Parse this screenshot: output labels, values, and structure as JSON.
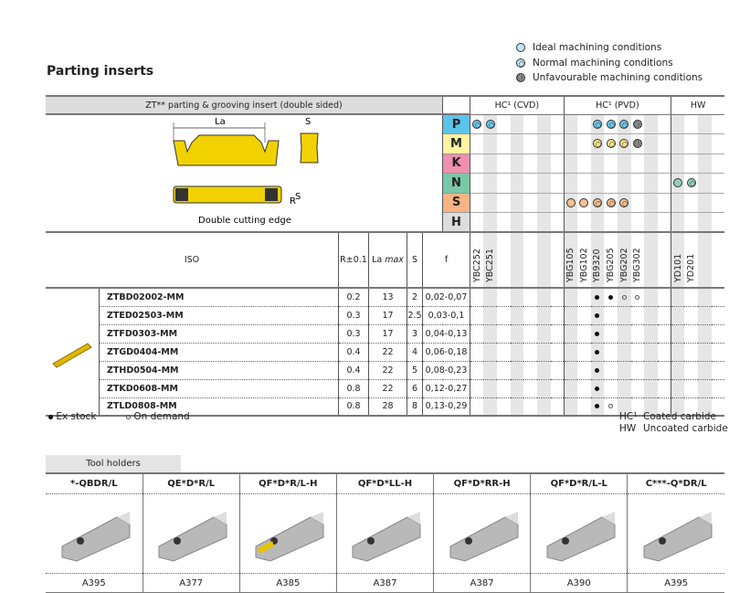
{
  "title": "Parting inserts",
  "legend": [
    {
      "type": "ideal",
      "label": "Ideal machining conditions"
    },
    {
      "type": "normal",
      "label": "Normal machining conditions"
    },
    {
      "type": "unfav",
      "label": "Unfavourable machining conditions"
    }
  ],
  "insert_header": "ZT** parting & grooving insert (double sided)",
  "drawing": {
    "la": "La",
    "s": "S",
    "r": "R",
    "s2": "S",
    "caption": "Double cutting edge"
  },
  "sections": [
    {
      "label": "HC¹ (CVD)",
      "cols": 7
    },
    {
      "label": "HC¹ (PVD)",
      "cols": 8
    },
    {
      "label": "HW",
      "cols": 4
    }
  ],
  "grades": [
    "YBC252",
    "YBC251",
    "",
    "",
    "",
    "",
    "",
    "YBG105",
    "YBG102",
    "YB9320",
    "YBG205",
    "YBG202",
    "YBG302",
    "",
    "",
    "YD101",
    "YD201",
    "",
    ""
  ],
  "materials": [
    {
      "letter": "P",
      "color": "#5cc3ea",
      "cells": {
        "0": "normal",
        "1": "normal",
        "9": "normal",
        "10": "normal",
        "11": "normal",
        "12": "unfav"
      },
      "sym_color": "#6cc8ee"
    },
    {
      "letter": "M",
      "color": "#fdf3a0",
      "cells": {
        "9": "normal",
        "10": "normal",
        "11": "normal",
        "12": "unfav"
      },
      "sym_color": "#f7e88a"
    },
    {
      "letter": "K",
      "color": "#f08fb0",
      "cells": {},
      "sym_color": "#f08fb0"
    },
    {
      "letter": "N",
      "color": "#79c9a8",
      "cells": {
        "15": "ideal",
        "16": "normal"
      },
      "sym_color": "#8fd3b4"
    },
    {
      "letter": "S",
      "color": "#f7b484",
      "cells": {
        "7": "ideal",
        "8": "ideal",
        "9": "normal",
        "10": "normal",
        "11": "normal"
      },
      "sym_color": "#f7c08f"
    },
    {
      "letter": "H",
      "color": "#dddddd",
      "cells": {},
      "sym_color": "#ddd"
    }
  ],
  "columns": {
    "iso": "ISO",
    "r": "R±0.1",
    "la": "La",
    "la_max": "max",
    "s": "S",
    "f": "f"
  },
  "rows": [
    {
      "iso": "ZTBD02002-MM",
      "r": "0.2",
      "la": "13",
      "s": "2",
      "f": "0,02-0,07",
      "stock": {
        "9": "ex",
        "10": "ex",
        "11": "od",
        "12": "od"
      }
    },
    {
      "iso": "ZTED02503-MM",
      "r": "0.3",
      "la": "17",
      "s": "2.5",
      "f": "0,03-0,1",
      "stock": {
        "9": "ex"
      }
    },
    {
      "iso": "ZTFD0303-MM",
      "r": "0.3",
      "la": "17",
      "s": "3",
      "f": "0,04-0,13",
      "stock": {
        "9": "ex"
      }
    },
    {
      "iso": "ZTGD0404-MM",
      "r": "0.4",
      "la": "22",
      "s": "4",
      "f": "0,06-0,18",
      "stock": {
        "9": "ex"
      }
    },
    {
      "iso": "ZTHD0504-MM",
      "r": "0.4",
      "la": "22",
      "s": "5",
      "f": "0,08-0,23",
      "stock": {
        "9": "ex"
      }
    },
    {
      "iso": "ZTKD0608-MM",
      "r": "0.8",
      "la": "22",
      "s": "6",
      "f": "0,12-0,27",
      "stock": {
        "9": "ex"
      }
    },
    {
      "iso": "ZTLD0808-MM",
      "r": "0.8",
      "la": "28",
      "s": "8",
      "f": "0,13-0,29",
      "stock": {
        "9": "ex",
        "10": "od"
      }
    }
  ],
  "footer": {
    "ex_stock": "Ex stock",
    "on_demand": "On demand",
    "hc": "HC¹",
    "hc_desc": "Coated carbide",
    "hw": "HW",
    "hw_desc": "Uncoated carbide"
  },
  "tool_holders": {
    "tab": "Tool holders",
    "items": [
      {
        "name": "*-QBDR/L",
        "page": "A395"
      },
      {
        "name": "QE*D*R/L",
        "page": "A377"
      },
      {
        "name": "QF*D*R/L-H",
        "page": "A385"
      },
      {
        "name": "QF*D*LL-H",
        "page": "A387"
      },
      {
        "name": "QF*D*RR-H",
        "page": "A387"
      },
      {
        "name": "QF*D*R/L-L",
        "page": "A390"
      },
      {
        "name": "C***-Q*DR/L",
        "page": "A395"
      }
    ]
  }
}
